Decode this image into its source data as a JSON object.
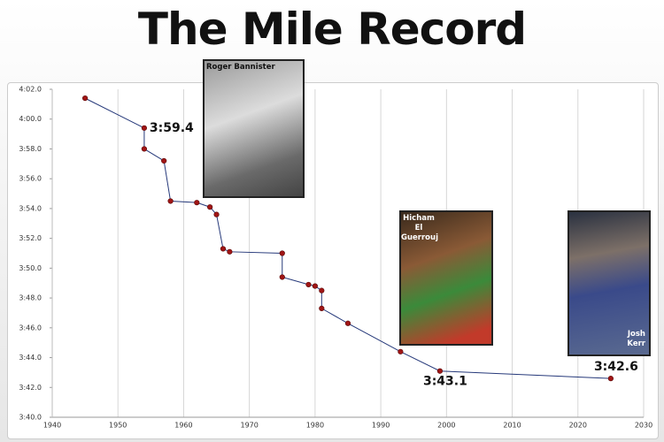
{
  "chart_data": {
    "type": "line",
    "title": "The Mile Record",
    "x": [
      1945,
      1954,
      1954,
      1957,
      1958,
      1962,
      1964,
      1965,
      1966,
      1967,
      1975,
      1975,
      1979,
      1980,
      1981,
      1981,
      1985,
      1993,
      1999,
      2025
    ],
    "series": [
      {
        "color": "#26397a",
        "marker_color": "#a01515",
        "values": [
          241.4,
          239.4,
          238.0,
          237.2,
          234.5,
          234.4,
          234.1,
          233.6,
          231.3,
          231.1,
          231.0,
          229.4,
          228.9,
          228.8,
          228.5,
          227.3,
          226.3,
          224.4,
          223.1,
          222.6
        ],
        "value_labels": [
          null,
          "3:59.4",
          null,
          null,
          null,
          null,
          null,
          null,
          null,
          null,
          null,
          null,
          null,
          null,
          null,
          null,
          null,
          null,
          "3:43.1",
          "3:42.6"
        ]
      }
    ],
    "xlim": [
      1940,
      2030
    ],
    "xticks": [
      1940,
      1950,
      1960,
      1970,
      1980,
      1990,
      2000,
      2010,
      2020,
      2030
    ],
    "ylim": [
      220,
      242
    ],
    "yticks": [
      {
        "value": 220,
        "label": "3:40.0"
      },
      {
        "value": 222,
        "label": "3:42.0"
      },
      {
        "value": 224,
        "label": "3:44.0"
      },
      {
        "value": 226,
        "label": "3:46.0"
      },
      {
        "value": 228,
        "label": "3:48.0"
      },
      {
        "value": 230,
        "label": "3:50.0"
      },
      {
        "value": 232,
        "label": "3:52.0"
      },
      {
        "value": 234,
        "label": "3:54.0"
      },
      {
        "value": 236,
        "label": "3:56.0"
      },
      {
        "value": 238,
        "label": "3:58.0"
      },
      {
        "value": 240,
        "label": "4:00.0"
      },
      {
        "value": 242,
        "label": "4:02.0"
      }
    ],
    "grid": "x",
    "annotations": [
      {
        "text": "Roger Bannister"
      },
      {
        "text": "Hicham El Guerrouj"
      },
      {
        "text": "Josh Kerr"
      }
    ]
  }
}
